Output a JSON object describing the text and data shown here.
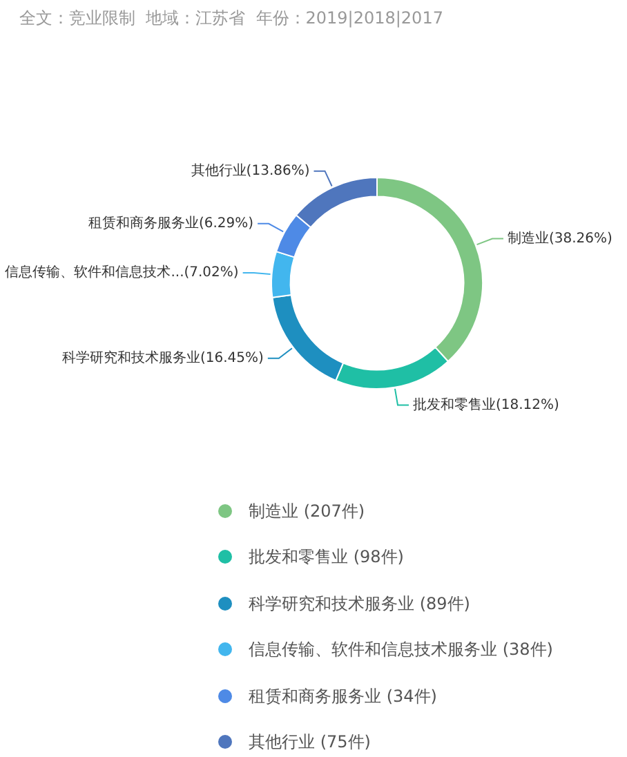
{
  "chart_data": {
    "type": "donut",
    "title": "全文：竞业限制  地域：江苏省  年份：2019|2018|2017",
    "categories": [
      "制造业 (207件)",
      "批发和零售业 (98件)",
      "科学研究和技术服务业 (89件)",
      "信息传输、软件和信息技术服务业 (38件)",
      "租赁和商务服务业 (34件)",
      "其他行业 (75件)"
    ],
    "values": [
      38.26,
      18.12,
      16.45,
      7.02,
      6.29,
      13.86
    ],
    "colors": [
      "#7ec683",
      "#1fbfa5",
      "#1e8fc0",
      "#42b6ee",
      "#4e8ae6",
      "#4f76bd"
    ],
    "value_labels": [
      "制造业(38.26%)",
      "批发和零售业(18.12%)",
      "科学研究和技术服务业(16.45%)",
      "信息传输、软件和信息技术...(7.02%)",
      "租赁和商务服务业(6.29%)",
      "其他行业(13.86%)"
    ],
    "legend": "bottom"
  }
}
